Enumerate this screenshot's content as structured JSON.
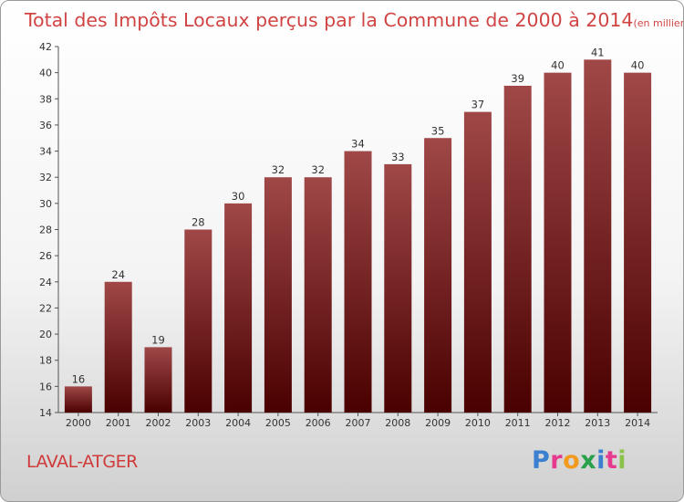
{
  "chart_data": {
    "type": "bar",
    "title": "Total des Impôts Locaux perçus par la Commune de 2000 à 2014",
    "unit_note": "(en milliers d'€)",
    "categories": [
      "2000",
      "2001",
      "2002",
      "2003",
      "2004",
      "2005",
      "2006",
      "2007",
      "2008",
      "2009",
      "2010",
      "2011",
      "2012",
      "2013",
      "2014"
    ],
    "values": [
      16,
      24,
      19,
      28,
      30,
      32,
      32,
      34,
      33,
      35,
      37,
      39,
      40,
      41,
      40
    ],
    "ylim": [
      14,
      42
    ],
    "yticks": [
      14,
      16,
      18,
      20,
      22,
      24,
      26,
      28,
      30,
      32,
      34,
      36,
      38,
      40,
      42
    ],
    "bar_color_top": "#a04848",
    "bar_color_bottom": "#4a0000",
    "grid": false
  },
  "commune_name": "LAVAL-ATGER",
  "logo": {
    "letters": [
      "P",
      "r",
      "o",
      "x",
      "i",
      "t",
      "i"
    ],
    "colors": [
      "#3a7fd0",
      "#e63a8e",
      "#f29a1d",
      "#2aa04a",
      "#3a7fd0",
      "#e63a8e",
      "#8bc34a"
    ]
  }
}
